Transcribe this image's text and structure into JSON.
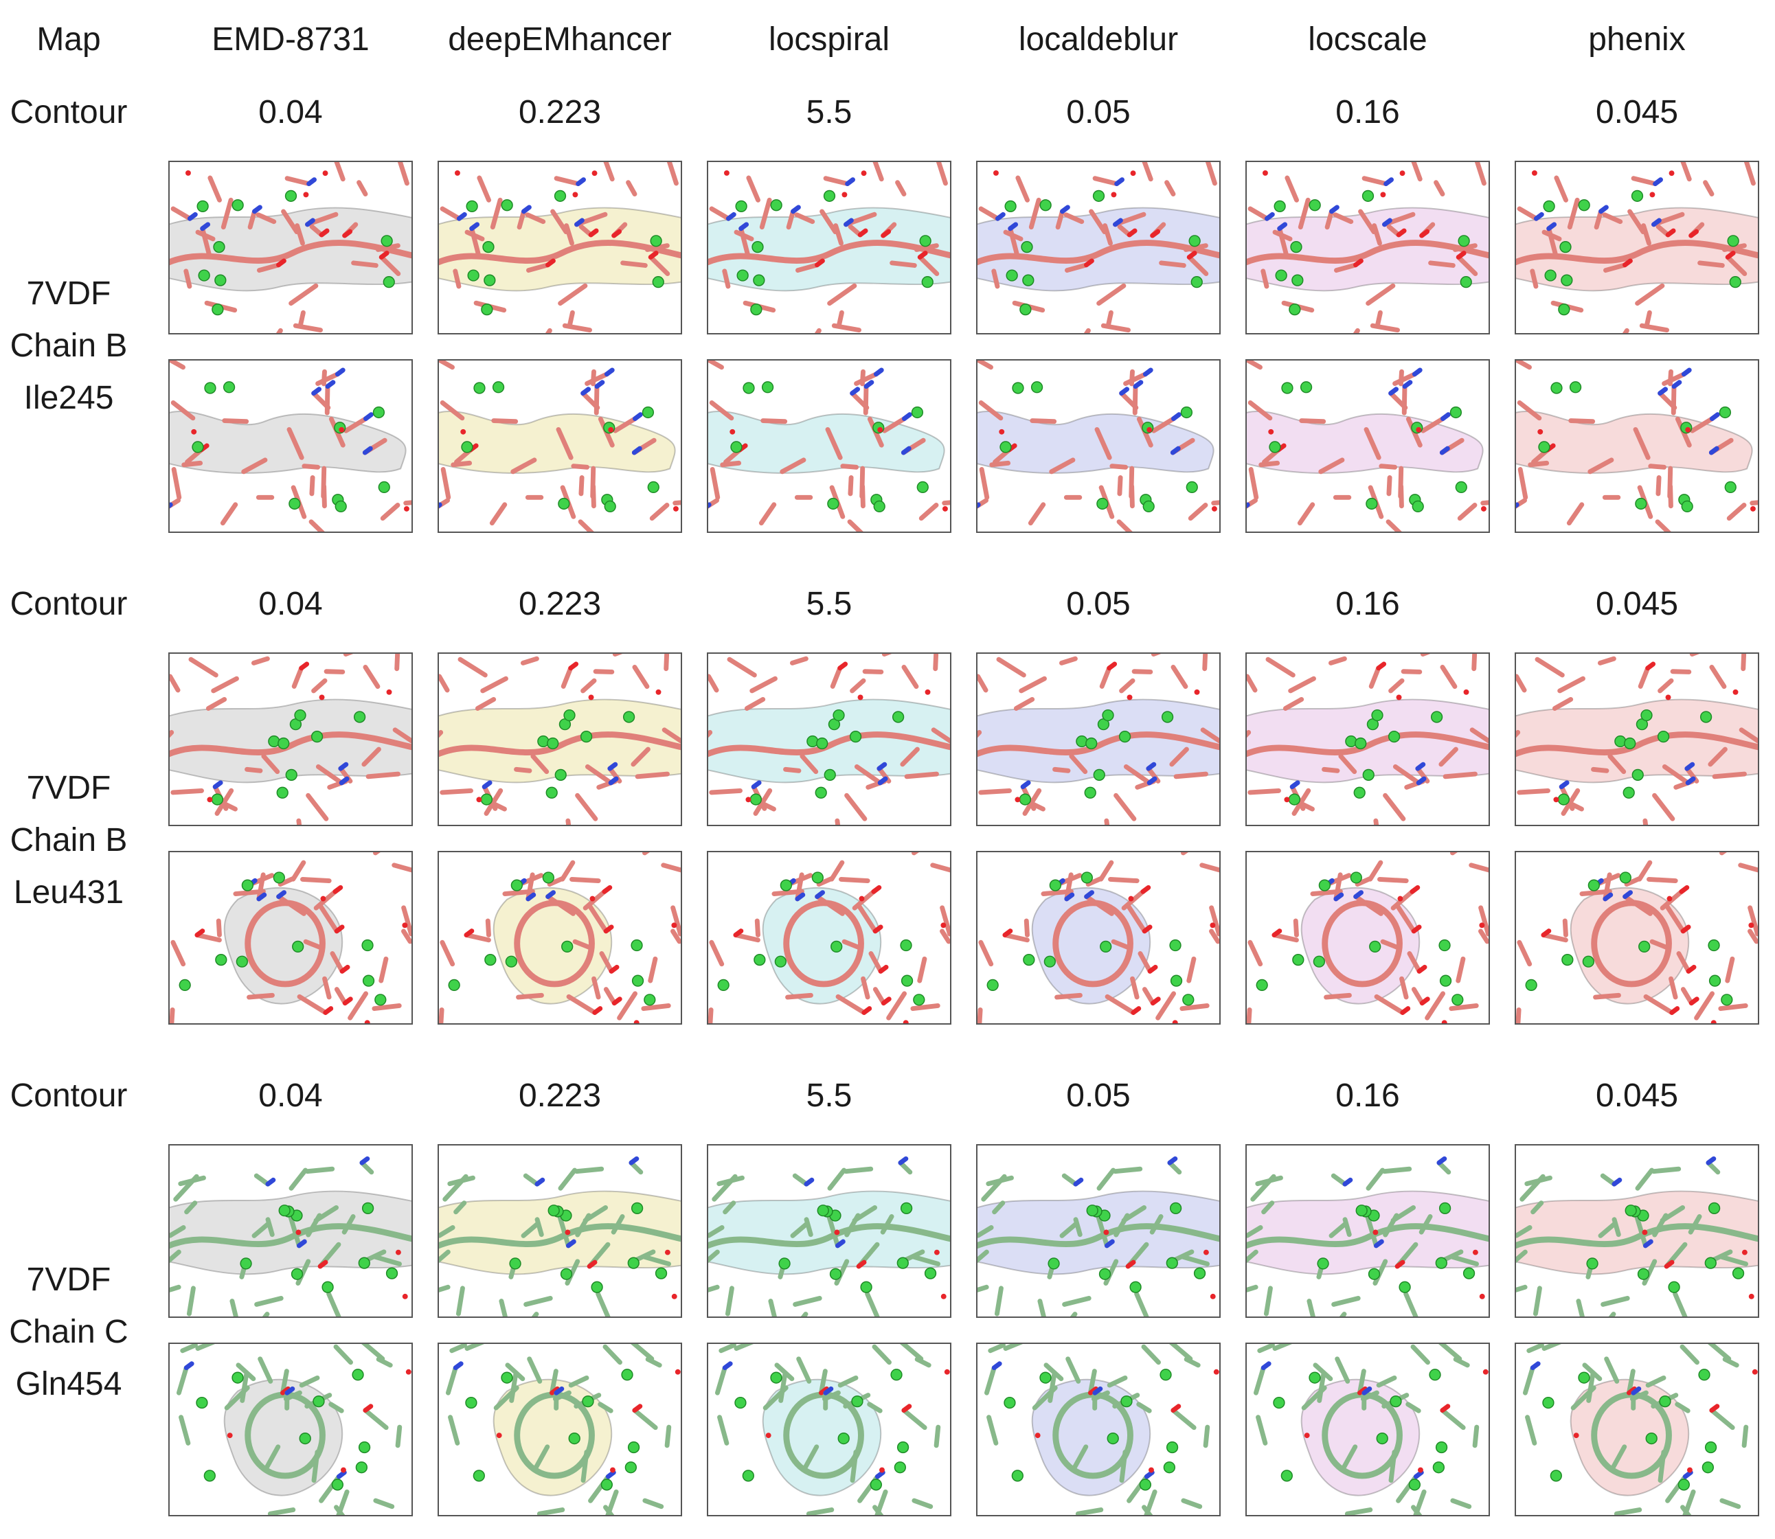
{
  "header": {
    "map_label": "Map",
    "columns": [
      {
        "name": "EMD-8731",
        "tint": "#d9d9d9"
      },
      {
        "name": "deepEMhancer",
        "tint": "#f1ecc0"
      },
      {
        "name": "locspiral",
        "tint": "#c9ecee"
      },
      {
        "name": "localdeblur",
        "tint": "#cfd3f2"
      },
      {
        "name": "locscale",
        "tint": "#edd3ee"
      },
      {
        "name": "phenix",
        "tint": "#f4cfcf"
      }
    ]
  },
  "sections": [
    {
      "contour_label": "Contour",
      "contours": [
        "0.04",
        "0.223",
        "5.5",
        "0.05",
        "0.16",
        "0.045"
      ],
      "structure": {
        "pdb": "7VDF",
        "chain": "Chain B",
        "residue": "Ile245"
      },
      "panel_descriptions": [
        "beta strand side view",
        "beta strand end view"
      ],
      "stick_color": "#e0807a"
    },
    {
      "contour_label": "Contour",
      "contours": [
        "0.04",
        "0.223",
        "5.5",
        "0.05",
        "0.16",
        "0.045"
      ],
      "structure": {
        "pdb": "7VDF",
        "chain": "Chain B",
        "residue": "Leu431"
      },
      "panel_descriptions": [
        "helix side view",
        "helix end view"
      ],
      "stick_color": "#e0807a"
    },
    {
      "contour_label": "Contour",
      "contours": [
        "0.04",
        "0.223",
        "5.5",
        "0.05",
        "0.16",
        "0.045"
      ],
      "structure": {
        "pdb": "7VDF",
        "chain": "Chain C",
        "residue": "Gln454"
      },
      "panel_descriptions": [
        "helix side view",
        "helix oblique view"
      ],
      "stick_color": "#88b88a"
    }
  ]
}
